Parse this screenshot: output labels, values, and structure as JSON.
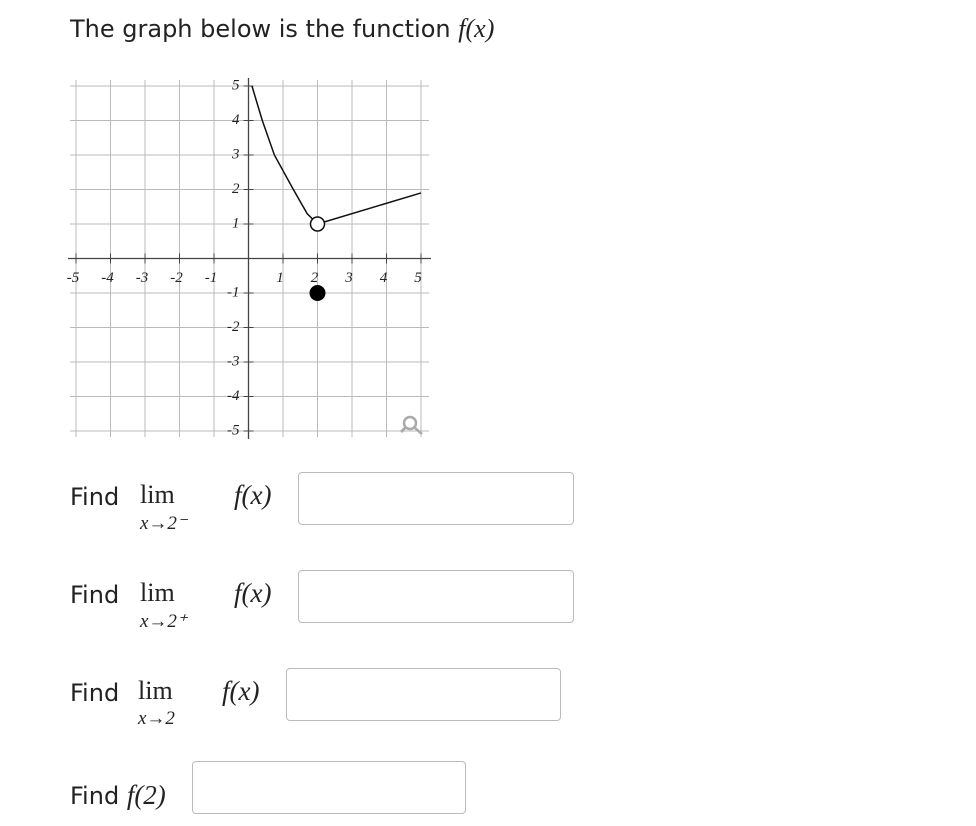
{
  "title": {
    "text": "The graph below is the function",
    "math": "f(x)"
  },
  "graph": {
    "type": "line",
    "xlim": [
      -5,
      5
    ],
    "ylim": [
      -5,
      5
    ],
    "xticks": [
      -5,
      -4,
      -3,
      -2,
      -1,
      1,
      2,
      3,
      4,
      5
    ],
    "yticks": [
      -5,
      -4,
      -3,
      -2,
      -1,
      1,
      2,
      3,
      4,
      5
    ],
    "grid": true,
    "curve": {
      "x": [
        0.1,
        0.4,
        0.75,
        1.3,
        1.7,
        2
      ],
      "y": [
        5,
        4,
        3,
        2,
        1.3,
        1
      ]
    },
    "segment": {
      "x": [
        2,
        5
      ],
      "y": [
        1,
        1.9
      ]
    },
    "open_point": {
      "x": 2,
      "y": 1
    },
    "closed_point": {
      "x": 2,
      "y": -1
    }
  },
  "questions": [
    {
      "label": "Find",
      "operator": "lim",
      "subscript": "x→2⁻",
      "function": "f(x)"
    },
    {
      "label": "Find",
      "operator": "lim",
      "subscript": "x→2⁺",
      "function": "f(x)"
    },
    {
      "label": "Find",
      "operator": "lim",
      "subscript": "x→2",
      "function": "f(x)"
    }
  ],
  "final_question": {
    "label": "Find",
    "function": "f(2)"
  }
}
